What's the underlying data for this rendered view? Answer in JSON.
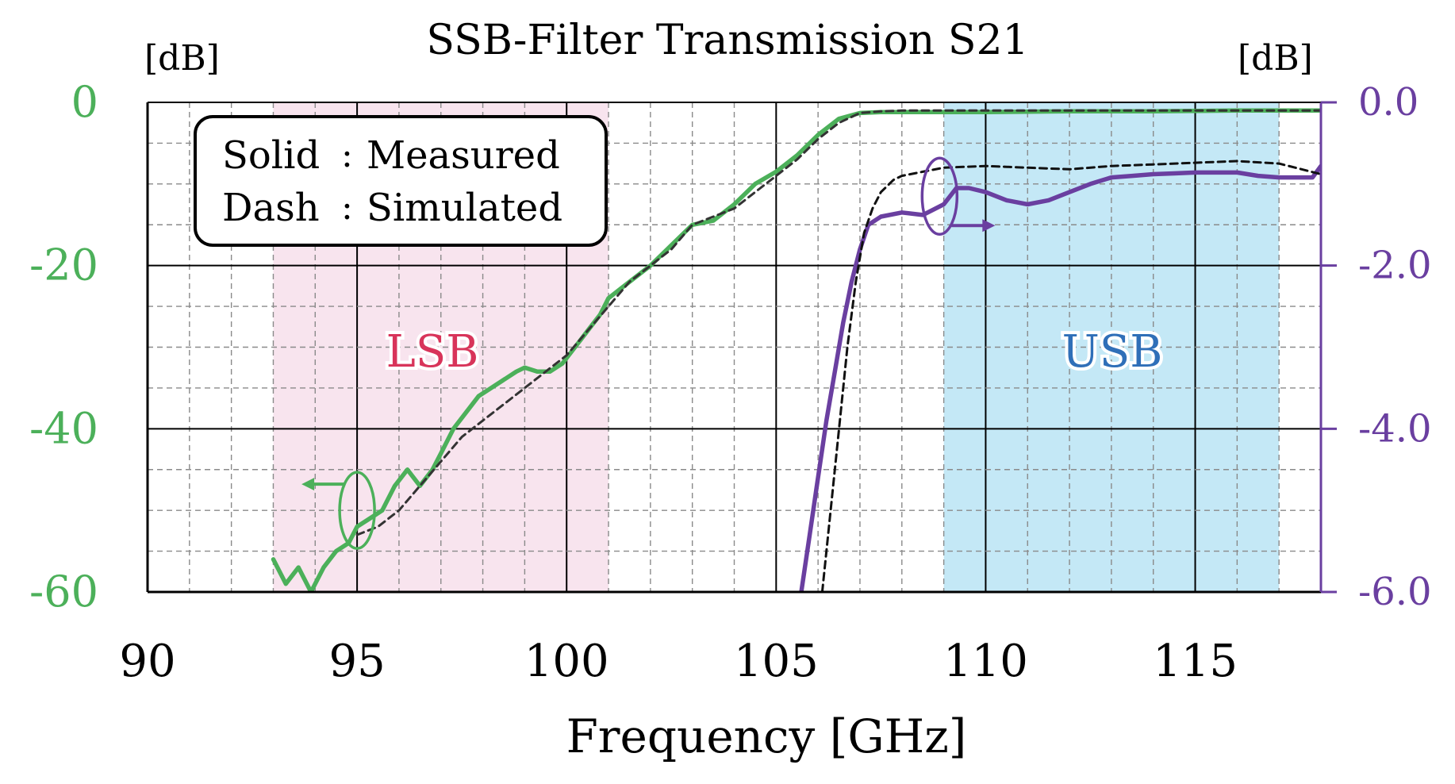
{
  "chart_data": {
    "type": "line",
    "title": "SSB-Filter Transmission S21",
    "xlabel": "Frequency [GHz]",
    "y_left_unit": "[dB]",
    "y_right_unit": "[dB]",
    "xlim": [
      90,
      118
    ],
    "ylim_left": [
      -60,
      0
    ],
    "ylim_right": [
      -6.0,
      0.0
    ],
    "x_ticks": [
      "90",
      "95",
      "100",
      "105",
      "110",
      "115"
    ],
    "y_left_ticks": [
      "0",
      "-20",
      "-40",
      "-60"
    ],
    "y_right_ticks": [
      "0.0",
      "-2.0",
      "-4.0",
      "-6.0"
    ],
    "grid": true,
    "bands": [
      {
        "name": "LSB",
        "x_range": [
          93,
          101
        ],
        "color": "#f8e4ee",
        "label_color": "#d8345a"
      },
      {
        "name": "USB",
        "x_range": [
          109,
          117
        ],
        "color": "#c4e8f6",
        "label_color": "#2f6fb8"
      }
    ],
    "legend": {
      "solid_label": "Solid",
      "solid_text": "Measured",
      "dash_label": "Dash",
      "dash_text": "Simulated",
      "separator": ":",
      "position": "top-left"
    },
    "series": [
      {
        "name": "Measured (left axis)",
        "axis": "left",
        "style": "solid",
        "color": "#4cb05a",
        "x": [
          93.0,
          93.3,
          93.6,
          93.9,
          94.2,
          94.5,
          94.8,
          95.0,
          95.3,
          95.6,
          95.9,
          96.2,
          96.5,
          96.8,
          97.0,
          97.3,
          97.6,
          97.9,
          98.2,
          98.5,
          98.8,
          99.0,
          99.3,
          99.6,
          99.9,
          100.2,
          100.5,
          100.8,
          101.0,
          101.5,
          102.0,
          102.5,
          103.0,
          103.5,
          104.0,
          104.5,
          105.0,
          105.5,
          106.0,
          106.5,
          107.0,
          107.5,
          108.0,
          110.0,
          112.0,
          114.0,
          116.0,
          118.0
        ],
        "y": [
          -56,
          -59,
          -57,
          -60,
          -57,
          -55,
          -54,
          -52,
          -51,
          -50,
          -47,
          -45,
          -47,
          -45,
          -43,
          -40,
          -38,
          -36,
          -35,
          -34,
          -33,
          -32.5,
          -33,
          -33,
          -32,
          -30,
          -28,
          -26,
          -24,
          -22,
          -20,
          -17.5,
          -15,
          -14.5,
          -12.5,
          -10,
          -8.5,
          -6.5,
          -4,
          -2,
          -1.3,
          -1.2,
          -1.2,
          -1.2,
          -1.1,
          -1.1,
          -1.0,
          -1.0
        ]
      },
      {
        "name": "Simulated (left axis)",
        "axis": "left",
        "style": "dash",
        "color": "#333333",
        "x": [
          95.0,
          95.5,
          96.0,
          96.5,
          97.0,
          97.5,
          98.0,
          98.5,
          99.0,
          99.5,
          100.0,
          100.5,
          101.0,
          101.5,
          102.0,
          102.5,
          103.0,
          103.5,
          104.0,
          104.5,
          105.0,
          105.5,
          106.0,
          106.5,
          107.0,
          107.5,
          108.0,
          110.0,
          112.0,
          114.0,
          116.0,
          118.0
        ],
        "y": [
          -53,
          -52,
          -50,
          -47,
          -44,
          -41,
          -39,
          -37,
          -35,
          -33,
          -31,
          -28,
          -25,
          -22,
          -20,
          -18,
          -15,
          -14,
          -13,
          -11,
          -9,
          -7,
          -4.5,
          -2.5,
          -1.3,
          -1.1,
          -1.0,
          -1.0,
          -1.0,
          -1.0,
          -1.0,
          -1.0
        ]
      },
      {
        "name": "Measured (right axis)",
        "axis": "right",
        "style": "solid",
        "color": "#6a3fa0",
        "x": [
          105.6,
          105.8,
          106.0,
          106.2,
          106.4,
          106.6,
          106.8,
          107.0,
          107.2,
          107.5,
          108.0,
          108.5,
          109.0,
          109.3,
          109.6,
          110.0,
          110.5,
          111.0,
          111.5,
          112.0,
          112.5,
          113.0,
          113.5,
          114.0,
          114.5,
          115.0,
          115.5,
          116.0,
          116.5,
          117.0,
          117.5,
          117.8,
          118.0
        ],
        "y": [
          -6.0,
          -5.3,
          -4.6,
          -3.9,
          -3.3,
          -2.7,
          -2.2,
          -1.8,
          -1.5,
          -1.4,
          -1.35,
          -1.38,
          -1.25,
          -1.05,
          -1.05,
          -1.1,
          -1.2,
          -1.25,
          -1.2,
          -1.1,
          -1.0,
          -0.92,
          -0.9,
          -0.88,
          -0.87,
          -0.86,
          -0.86,
          -0.86,
          -0.9,
          -0.92,
          -0.92,
          -0.92,
          -0.78
        ]
      },
      {
        "name": "Simulated (right axis)",
        "axis": "right",
        "style": "dash",
        "color": "#111111",
        "x": [
          106.1,
          106.3,
          106.5,
          106.7,
          106.9,
          107.1,
          107.3,
          107.5,
          107.8,
          108.0,
          108.5,
          109.0,
          110.0,
          111.0,
          112.0,
          113.0,
          114.0,
          115.0,
          116.0,
          117.0,
          118.0
        ],
        "y": [
          -6.0,
          -5.0,
          -4.0,
          -3.0,
          -2.2,
          -1.6,
          -1.3,
          -1.1,
          -0.95,
          -0.9,
          -0.85,
          -0.8,
          -0.78,
          -0.8,
          -0.82,
          -0.78,
          -0.76,
          -0.74,
          -0.72,
          -0.75,
          -0.88
        ]
      }
    ],
    "annotations": [
      {
        "type": "ellipse-arrow",
        "series": "Measured (left axis)",
        "at_x": 95.0,
        "at_y": -50,
        "arrow_direction": "left"
      },
      {
        "type": "ellipse-arrow",
        "series": "Measured (right axis)",
        "at_x": 108.9,
        "at_y": -1.15,
        "arrow_direction": "right"
      }
    ]
  }
}
